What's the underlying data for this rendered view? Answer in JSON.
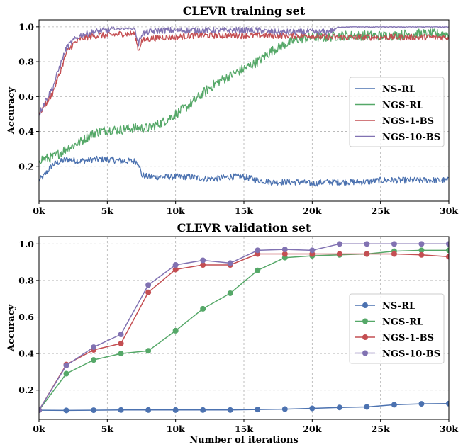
{
  "chart_data": [
    {
      "type": "line",
      "title": "CLEVR training set",
      "xlabel": "",
      "ylabel": "Accuracy",
      "xlim": [
        0,
        30000
      ],
      "ylim": [
        0.0,
        1.04
      ],
      "xticks": [
        0,
        5000,
        10000,
        15000,
        20000,
        25000,
        30000
      ],
      "xtick_labels": [
        "0k",
        "5k",
        "10k",
        "15k",
        "20k",
        "25k",
        "30k"
      ],
      "yticks": [
        0.2,
        0.4,
        0.6,
        0.8,
        1.0
      ],
      "ytick_labels": [
        "0.2",
        "0.4",
        "0.6",
        "0.8",
        "1.0"
      ],
      "grid": true,
      "legend": "center-right",
      "series": [
        {
          "name": "NS-RL",
          "color": "#4c72b0",
          "x": [
            0,
            300,
            1000,
            2000,
            3000,
            4000,
            5000,
            6000,
            7000,
            7300,
            7500,
            8000,
            9000,
            10000,
            11000,
            12000,
            13000,
            14000,
            15000,
            16000,
            17000,
            18000,
            19000,
            20000,
            21000,
            22000,
            23000,
            24000,
            25000,
            26000,
            27000,
            28000,
            29000,
            30000
          ],
          "values": [
            0.12,
            0.14,
            0.21,
            0.24,
            0.23,
            0.24,
            0.24,
            0.23,
            0.23,
            0.22,
            0.15,
            0.14,
            0.14,
            0.14,
            0.14,
            0.13,
            0.13,
            0.14,
            0.14,
            0.12,
            0.11,
            0.11,
            0.11,
            0.1,
            0.11,
            0.11,
            0.11,
            0.11,
            0.12,
            0.12,
            0.12,
            0.12,
            0.12,
            0.12
          ]
        },
        {
          "name": "NGS-RL",
          "color": "#55a868",
          "x": [
            0,
            1000,
            2000,
            3000,
            4000,
            5000,
            6000,
            7000,
            8000,
            9000,
            10000,
            11000,
            12000,
            13000,
            14000,
            15000,
            16000,
            17000,
            18000,
            19000,
            20000,
            21000,
            22000,
            23000,
            24000,
            25000,
            26000,
            27000,
            28000,
            29000,
            30000
          ],
          "values": [
            0.24,
            0.25,
            0.3,
            0.34,
            0.39,
            0.41,
            0.41,
            0.42,
            0.42,
            0.45,
            0.5,
            0.55,
            0.62,
            0.68,
            0.72,
            0.76,
            0.8,
            0.86,
            0.9,
            0.93,
            0.94,
            0.94,
            0.95,
            0.95,
            0.95,
            0.95,
            0.95,
            0.96,
            0.96,
            0.96,
            0.96
          ]
        },
        {
          "name": "NGS-1-BS",
          "color": "#c44e52",
          "x": [
            0,
            500,
            1000,
            1500,
            2000,
            2500,
            3000,
            4000,
            5000,
            6000,
            7000,
            7300,
            7500,
            8000,
            9000,
            10000,
            11000,
            12000,
            13000,
            14000,
            15000,
            16000,
            17000,
            18000,
            19000,
            20000,
            21000,
            22000,
            23000,
            24000,
            25000,
            26000,
            27000,
            28000,
            29000,
            30000
          ],
          "values": [
            0.5,
            0.56,
            0.62,
            0.73,
            0.85,
            0.9,
            0.93,
            0.95,
            0.95,
            0.96,
            0.96,
            0.86,
            0.92,
            0.93,
            0.94,
            0.94,
            0.95,
            0.95,
            0.95,
            0.95,
            0.95,
            0.95,
            0.95,
            0.95,
            0.95,
            0.95,
            0.94,
            0.94,
            0.94,
            0.94,
            0.94,
            0.94,
            0.94,
            0.94,
            0.94,
            0.94
          ]
        },
        {
          "name": "NGS-10-BS",
          "color": "#8172b2",
          "x": [
            0,
            500,
            1000,
            1500,
            2000,
            2500,
            3000,
            4000,
            5000,
            6000,
            7000,
            7300,
            7500,
            8000,
            9000,
            10000,
            11000,
            12000,
            13000,
            14000,
            15000,
            16000,
            17000,
            18000,
            19000,
            20000,
            21000,
            21500,
            22000,
            23000,
            24000,
            25000,
            26000,
            27000,
            28000,
            29000,
            30000
          ],
          "values": [
            0.5,
            0.58,
            0.65,
            0.77,
            0.88,
            0.92,
            0.95,
            0.97,
            0.98,
            0.99,
            0.99,
            0.9,
            0.96,
            0.97,
            0.98,
            0.98,
            0.98,
            0.98,
            0.98,
            0.98,
            0.98,
            0.98,
            0.97,
            0.97,
            0.97,
            0.97,
            0.97,
            0.98,
            1.0,
            1.0,
            1.0,
            1.0,
            1.0,
            1.0,
            1.0,
            1.0,
            1.0
          ]
        }
      ]
    },
    {
      "type": "line",
      "title": "CLEVR validation set",
      "xlabel": "Number of iterations",
      "ylabel": "Accuracy",
      "xlim": [
        0,
        30000
      ],
      "ylim": [
        0.04,
        1.04
      ],
      "xticks": [
        0,
        5000,
        10000,
        15000,
        20000,
        25000,
        30000
      ],
      "xtick_labels": [
        "0k",
        "5k",
        "10k",
        "15k",
        "20k",
        "25k",
        "30k"
      ],
      "yticks": [
        0.2,
        0.4,
        0.6,
        0.8,
        1.0
      ],
      "ytick_labels": [
        "0.2",
        "0.4",
        "0.6",
        "0.8",
        "1.0"
      ],
      "grid": true,
      "legend": "center-right",
      "x": [
        0,
        2000,
        4000,
        6000,
        8000,
        10000,
        12000,
        14000,
        16000,
        18000,
        20000,
        22000,
        24000,
        26000,
        28000,
        30000
      ],
      "series": [
        {
          "name": "NS-RL",
          "color": "#4c72b0",
          "values": [
            0.09,
            0.089,
            0.09,
            0.091,
            0.091,
            0.091,
            0.091,
            0.091,
            0.094,
            0.096,
            0.1,
            0.105,
            0.108,
            0.12,
            0.125,
            0.126
          ]
        },
        {
          "name": "NGS-RL",
          "color": "#55a868",
          "values": [
            0.09,
            0.29,
            0.365,
            0.4,
            0.415,
            0.525,
            0.645,
            0.73,
            0.855,
            0.925,
            0.935,
            0.94,
            0.945,
            0.96,
            0.965,
            0.965
          ]
        },
        {
          "name": "NGS-1-BS",
          "color": "#c44e52",
          "values": [
            0.09,
            0.34,
            0.42,
            0.455,
            0.735,
            0.86,
            0.885,
            0.885,
            0.945,
            0.945,
            0.945,
            0.945,
            0.945,
            0.945,
            0.94,
            0.93
          ]
        },
        {
          "name": "NGS-10-BS",
          "color": "#8172b2",
          "values": [
            0.09,
            0.335,
            0.435,
            0.505,
            0.775,
            0.885,
            0.91,
            0.895,
            0.965,
            0.97,
            0.965,
            1.0,
            1.0,
            1.0,
            1.0,
            1.0
          ]
        }
      ]
    }
  ]
}
